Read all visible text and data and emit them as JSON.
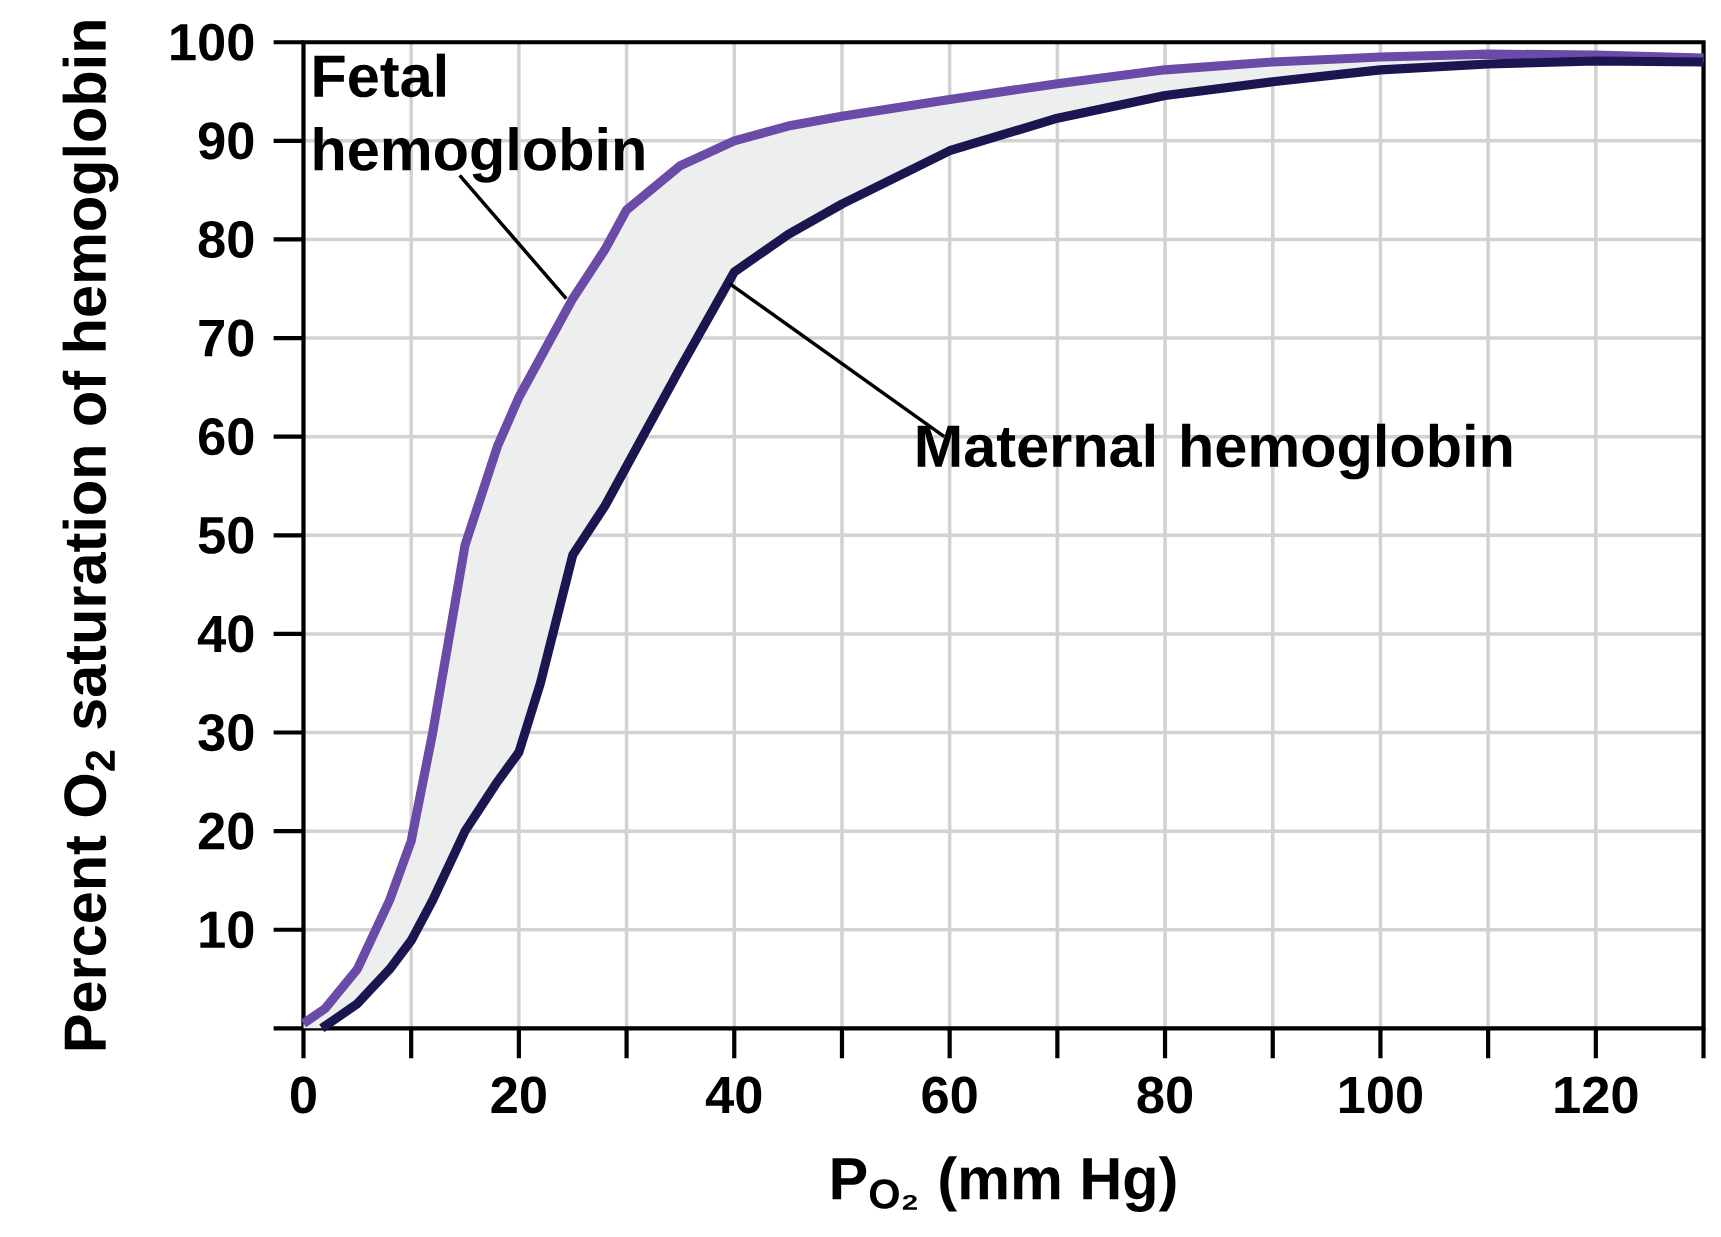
{
  "chart_data": {
    "type": "line",
    "xlabel": "P$_{O₂}$ (mm Hg)",
    "ylabel": "Percent O$_{2}$ saturation of hemoglobin",
    "x": [
      0,
      2,
      5,
      8,
      10,
      12,
      15,
      18,
      20,
      22,
      25,
      28,
      30,
      35,
      40,
      45,
      50,
      60,
      70,
      80,
      90,
      100,
      110,
      120,
      130
    ],
    "series": [
      {
        "color": "#6a4ca8",
        "values": [
          0.5,
          2,
          6,
          13,
          19,
          30,
          49,
          59,
          64,
          68,
          74,
          79,
          83,
          87.5,
          90,
          91.5,
          92.5,
          94.2,
          95.8,
          97.2,
          98,
          98.5,
          98.8,
          98.7,
          98.4
        ],
        "lower": [
          0,
          0,
          2.5,
          6,
          8.9,
          13,
          20,
          25,
          28,
          35,
          48,
          53,
          57,
          67,
          76.7,
          80.5,
          83.6,
          89,
          92.3,
          94.6,
          96,
          97.2,
          97.8,
          98.1,
          98
        ],
        "upper": [
          0.5,
          2,
          6,
          13,
          19,
          30,
          49,
          59,
          64,
          68,
          74,
          79,
          83,
          87.5,
          90,
          91.5,
          92.5,
          94.2,
          95.8,
          97.2,
          98,
          98.5,
          98.8,
          98.7,
          98.4
        ]
      },
      {
        "color": "#1b1650",
        "x": [
          1.7,
          5,
          8,
          10,
          12,
          15,
          18,
          20,
          22,
          25,
          28,
          30,
          35,
          40,
          45,
          50,
          60,
          70,
          80,
          90,
          100,
          110,
          120,
          130
        ],
        "values": [
          0,
          2.5,
          6,
          8.9,
          13,
          20,
          25,
          28,
          35,
          48,
          53,
          57,
          67,
          76.7,
          80.5,
          83.6,
          89,
          92.3,
          94.6,
          96,
          97.2,
          97.8,
          98.1,
          98
        ]
      }
    ],
    "annotations": [
      {
        "text": "Fetal hemoglobin",
        "x": 24.4,
        "y": 74
      },
      {
        "text": "Maternal hemoglobin",
        "x": 39.6,
        "y": 75.5
      }
    ],
    "xlim": [
      0,
      130
    ],
    "ylim": [
      0,
      100
    ],
    "xticks": [
      0,
      {
        "value": 10,
        "label": null
      },
      20,
      {
        "value": 30,
        "label": null
      },
      40,
      {
        "value": 50,
        "label": null
      },
      60,
      {
        "value": 70,
        "label": null
      },
      80,
      {
        "value": 90,
        "label": null
      },
      100,
      {
        "value": 110,
        "label": null
      },
      120,
      {
        "value": 130,
        "label": null
      }
    ],
    "yticks": [
      {
        "value": 0,
        "label": null
      },
      10,
      20,
      30,
      40,
      50,
      60,
      70,
      80,
      90,
      100
    ],
    "grid": true
  }
}
